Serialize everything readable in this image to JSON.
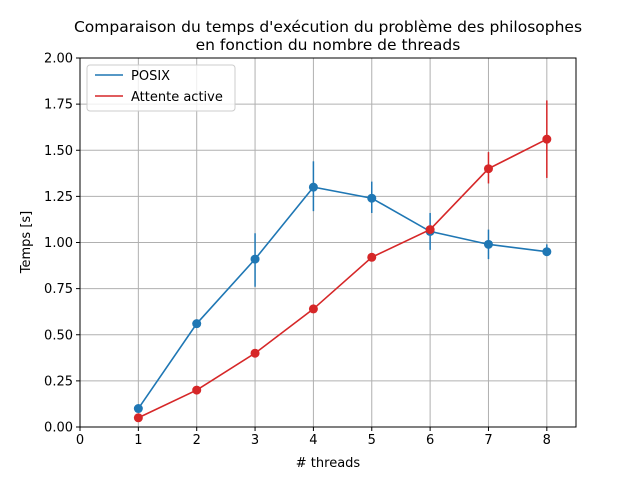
{
  "chart_data": {
    "type": "line",
    "title": [
      "Comparaison du temps d'exécution du problème des philosophes",
      "en fonction du nombre de threads"
    ],
    "xlabel": "# threads",
    "ylabel": "Temps [s]",
    "xlim": [
      0,
      8.5
    ],
    "ylim": [
      0,
      2.0
    ],
    "xticks": [
      0,
      1,
      2,
      3,
      4,
      5,
      6,
      7,
      8
    ],
    "yticks": [
      "0.00",
      "0.25",
      "0.50",
      "0.75",
      "1.00",
      "1.25",
      "1.50",
      "1.75",
      "2.00"
    ],
    "grid": true,
    "legend_position": "top-left",
    "series": [
      {
        "name": "POSIX",
        "color": "#1f77b4",
        "x": [
          1,
          2,
          3,
          4,
          5,
          6,
          7,
          8
        ],
        "y": [
          0.1,
          0.56,
          0.91,
          1.3,
          1.24,
          1.06,
          0.99,
          0.95
        ],
        "err_low": [
          0.09,
          0.55,
          0.76,
          1.17,
          1.16,
          0.96,
          0.91,
          0.93
        ],
        "err_high": [
          0.12,
          0.58,
          1.05,
          1.44,
          1.33,
          1.16,
          1.07,
          0.99
        ]
      },
      {
        "name": "Attente active",
        "color": "#d62728",
        "x": [
          1,
          2,
          3,
          4,
          5,
          6,
          7,
          8
        ],
        "y": [
          0.05,
          0.2,
          0.4,
          0.64,
          0.92,
          1.07,
          1.4,
          1.56
        ],
        "err_low": [
          0.04,
          0.19,
          0.39,
          0.63,
          0.91,
          1.05,
          1.32,
          1.35
        ],
        "err_high": [
          0.06,
          0.21,
          0.41,
          0.65,
          0.93,
          1.09,
          1.49,
          1.77
        ]
      }
    ]
  }
}
